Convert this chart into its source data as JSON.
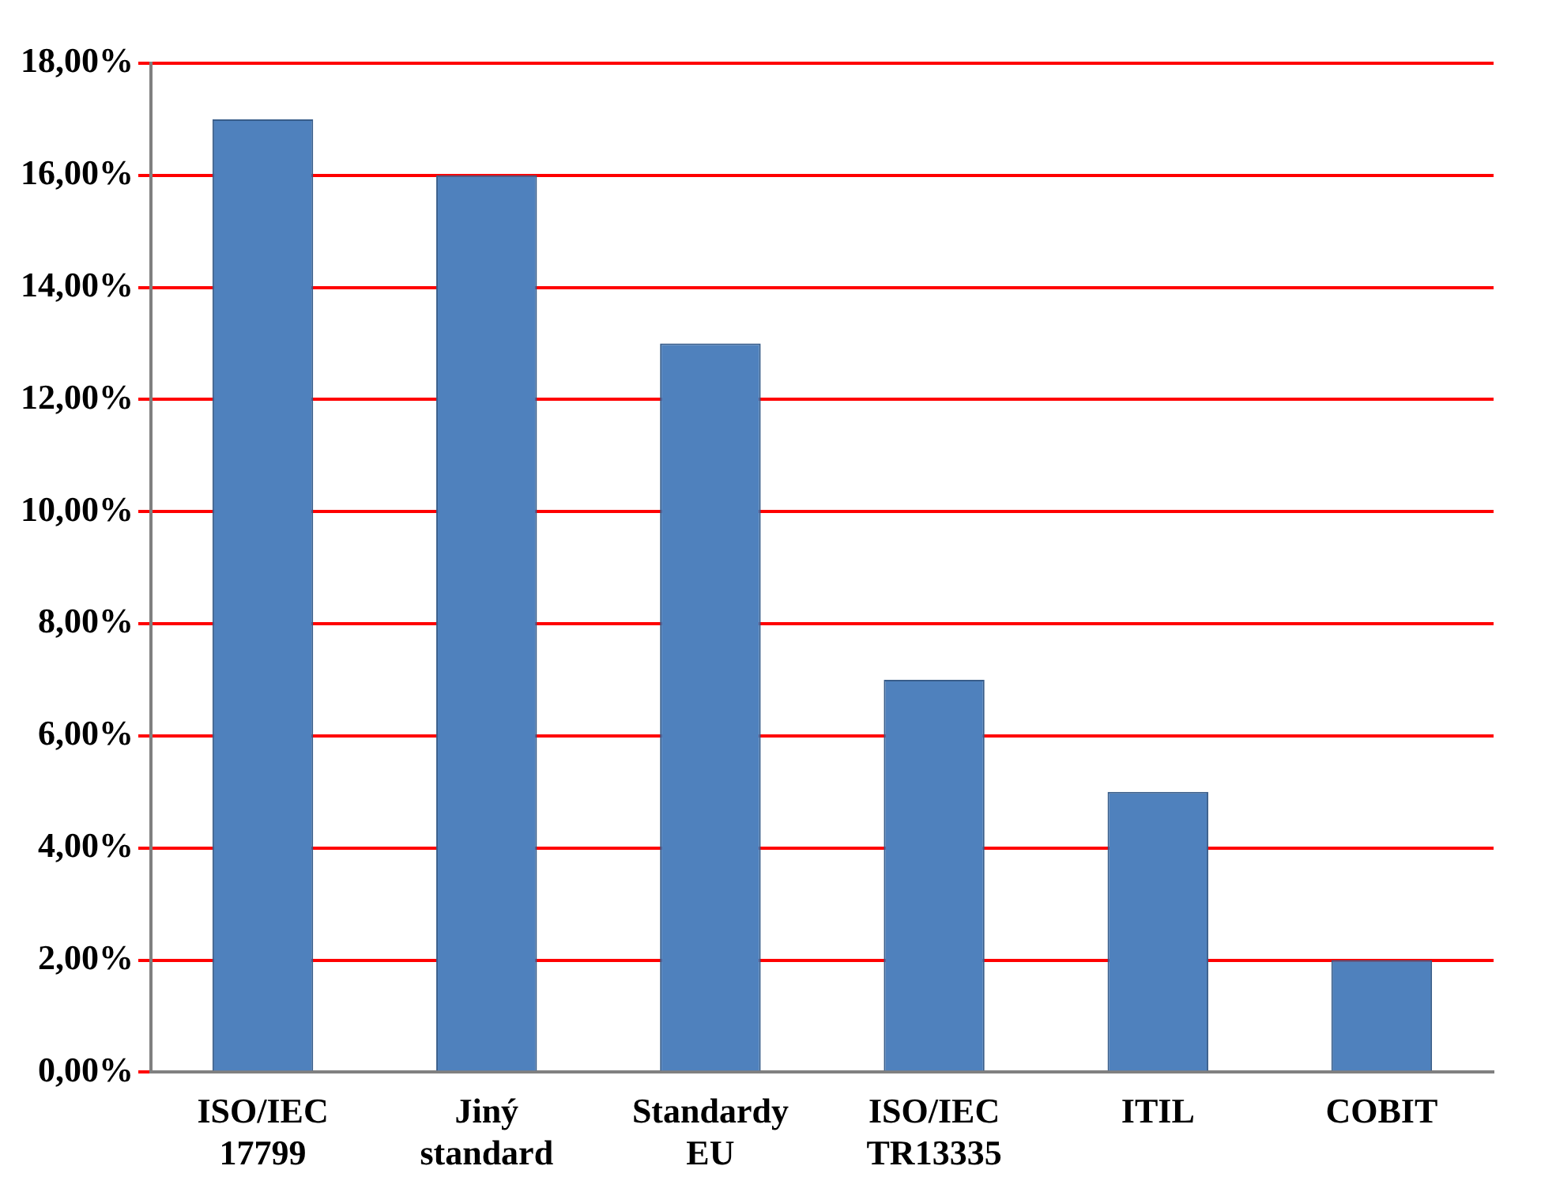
{
  "chart_data": {
    "type": "bar",
    "categories": [
      "ISO/IEC 17799",
      "Jiný standard",
      "Standardy EU",
      "ISO/IEC TR13335",
      "ITIL",
      "COBIT"
    ],
    "values": [
      17,
      16,
      13,
      7,
      5,
      2
    ],
    "color": "#4f81bd",
    "ylim": [
      0,
      18
    ],
    "yticks": [
      {
        "value": 0,
        "label": "0,00%"
      },
      {
        "value": 2,
        "label": "2,00%"
      },
      {
        "value": 4,
        "label": "4,00%"
      },
      {
        "value": 6,
        "label": "6,00%"
      },
      {
        "value": 8,
        "label": "8,00%"
      },
      {
        "value": 10,
        "label": "10,00%"
      },
      {
        "value": 12,
        "label": "12,00%"
      },
      {
        "value": 14,
        "label": "14,00%"
      },
      {
        "value": 16,
        "label": "16,00%"
      },
      {
        "value": 18,
        "label": "18,00%"
      }
    ],
    "grid": "y",
    "legend": false
  }
}
